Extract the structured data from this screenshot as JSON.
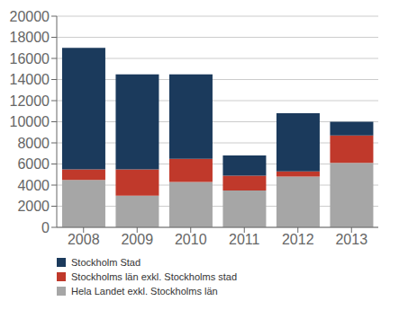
{
  "chart_data": {
    "type": "bar",
    "stacked": true,
    "categories": [
      "2008",
      "2009",
      "2010",
      "2011",
      "2012",
      "2013"
    ],
    "series": [
      {
        "name": "Hela Landet exkl. Stockholms län",
        "color": "#a6a6a6",
        "values": [
          4500,
          3000,
          4300,
          3500,
          4800,
          6100
        ]
      },
      {
        "name": "Stockholms län exkl. Stockholms stad",
        "color": "#c0392b",
        "values": [
          1000,
          2500,
          2200,
          1400,
          500,
          2600
        ]
      },
      {
        "name": "Stockholm Stad",
        "color": "#1b3a5c",
        "values": [
          11500,
          9000,
          8000,
          1900,
          5500,
          1300
        ]
      }
    ],
    "ylim": [
      0,
      20000
    ],
    "yticks": [
      0,
      2000,
      4000,
      6000,
      8000,
      10000,
      12000,
      14000,
      16000,
      18000,
      20000
    ],
    "grid": true,
    "legend": "bottom"
  }
}
